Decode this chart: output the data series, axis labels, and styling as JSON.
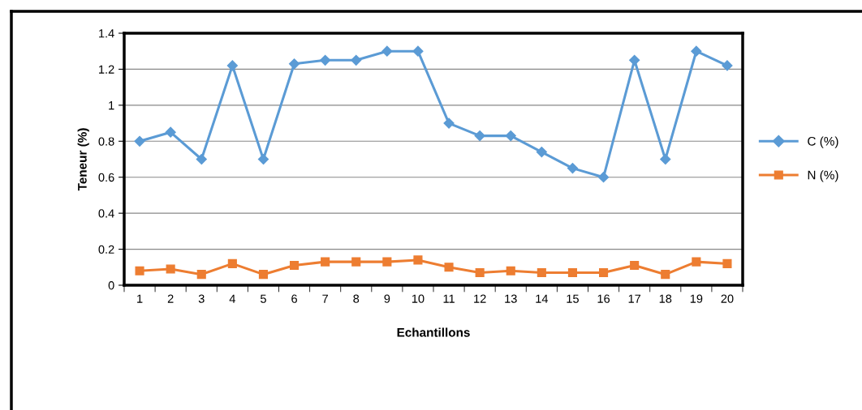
{
  "chart_data": {
    "type": "line",
    "xlabel": "Echantillons",
    "ylabel": "Teneur (%)",
    "categories": [
      "1",
      "2",
      "3",
      "4",
      "5",
      "6",
      "7",
      "8",
      "9",
      "10",
      "11",
      "12",
      "13",
      "14",
      "15",
      "16",
      "17",
      "18",
      "19",
      "20"
    ],
    "series": [
      {
        "name": "C (%)",
        "color": "#5b9bd5",
        "marker": "diamond",
        "values": [
          0.8,
          0.85,
          0.7,
          1.22,
          0.7,
          1.23,
          1.25,
          1.25,
          1.3,
          1.3,
          0.9,
          0.83,
          0.83,
          0.74,
          0.65,
          0.6,
          1.25,
          0.7,
          1.3,
          1.22
        ]
      },
      {
        "name": "N (%)",
        "color": "#ed7d31",
        "marker": "square",
        "values": [
          0.08,
          0.09,
          0.06,
          0.12,
          0.06,
          0.11,
          0.13,
          0.13,
          0.13,
          0.14,
          0.1,
          0.07,
          0.08,
          0.07,
          0.07,
          0.07,
          0.11,
          0.06,
          0.13,
          0.12
        ]
      }
    ],
    "ylim": [
      0,
      1.4
    ],
    "yticks": [
      0,
      {
        "value": 0.2,
        "label": "0.2"
      },
      {
        "value": 0.4,
        "label": "0.4"
      },
      {
        "value": 0.6,
        "label": "0.6"
      },
      {
        "value": 0.8,
        "label": "0.8"
      },
      1,
      {
        "value": 1.2,
        "label": "1.2"
      },
      {
        "value": 1.4,
        "label": "1.4"
      }
    ],
    "grid": "y",
    "legend": "right",
    "line_style": "solid"
  }
}
